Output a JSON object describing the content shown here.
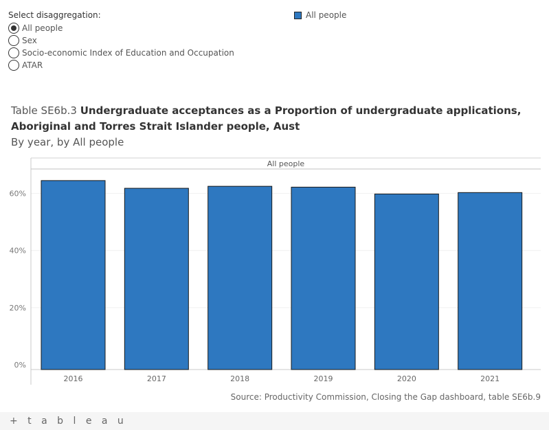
{
  "disaggregation": {
    "label": "Select disaggregation:",
    "options": [
      "All people",
      "Sex",
      "Socio-economic Index of Education and Occupation",
      "ATAR"
    ],
    "selected": "All people"
  },
  "legend": {
    "label": "All people",
    "color": "#2e78c0"
  },
  "title": {
    "prefix": "Table SE6b.3",
    "main": "Undergraduate acceptances as a Proportion of undergraduate applications, Aboriginal and Torres Strait Islander people, Aust",
    "subtitle": "By year, by All people"
  },
  "chart_data": {
    "type": "bar",
    "panel_header": "All people",
    "categories": [
      "2016",
      "2017",
      "2018",
      "2019",
      "2020",
      "2021"
    ],
    "series": [
      {
        "name": "All people",
        "values": [
          64.5,
          61.8,
          62.5,
          62.2,
          59.8,
          60.3
        ]
      }
    ],
    "ylim": [
      0,
      70
    ],
    "yticks": [
      0,
      20,
      40,
      60
    ],
    "ytick_labels": [
      "0%",
      "20%",
      "40%",
      "60%"
    ],
    "xlabel": "",
    "ylabel": "",
    "bar_color": "#2e78c0",
    "grid": true
  },
  "source": "Source: Productivity Commission, Closing the Gap dashboard, table SE6b.9",
  "footer": {
    "brand": "+ t a b l e a u"
  }
}
